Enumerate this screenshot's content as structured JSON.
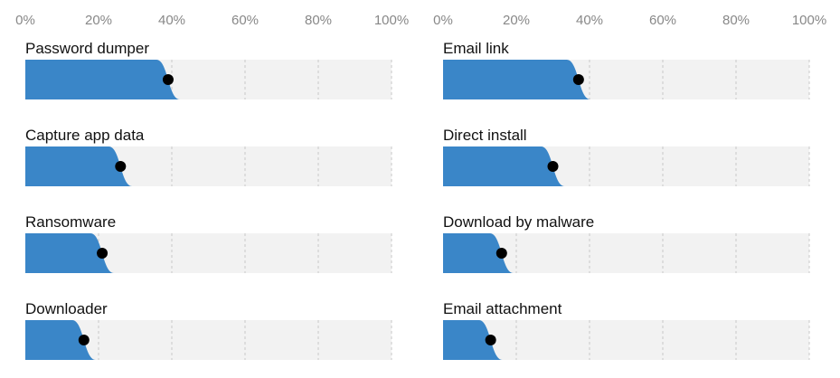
{
  "chart_data": [
    {
      "type": "bar",
      "xlim": [
        0,
        100
      ],
      "x_ticks": [
        "0%",
        "20%",
        "40%",
        "60%",
        "80%",
        "100%"
      ],
      "grid": true,
      "categories": [
        "Password dumper",
        "Capture app data",
        "Ransomware",
        "Downloader"
      ],
      "values": [
        39,
        26,
        21,
        16
      ],
      "colors": {
        "fill": "#3a86c8",
        "track": "#f2f2f2",
        "marker": "#000000"
      }
    },
    {
      "type": "bar",
      "xlim": [
        0,
        100
      ],
      "x_ticks": [
        "0%",
        "20%",
        "40%",
        "60%",
        "80%",
        "100%"
      ],
      "grid": true,
      "categories": [
        "Email link",
        "Direct install",
        "Download by malware",
        "Email attachment"
      ],
      "values": [
        37,
        30,
        16,
        13
      ],
      "colors": {
        "fill": "#3a86c8",
        "track": "#f2f2f2",
        "marker": "#000000"
      }
    }
  ]
}
